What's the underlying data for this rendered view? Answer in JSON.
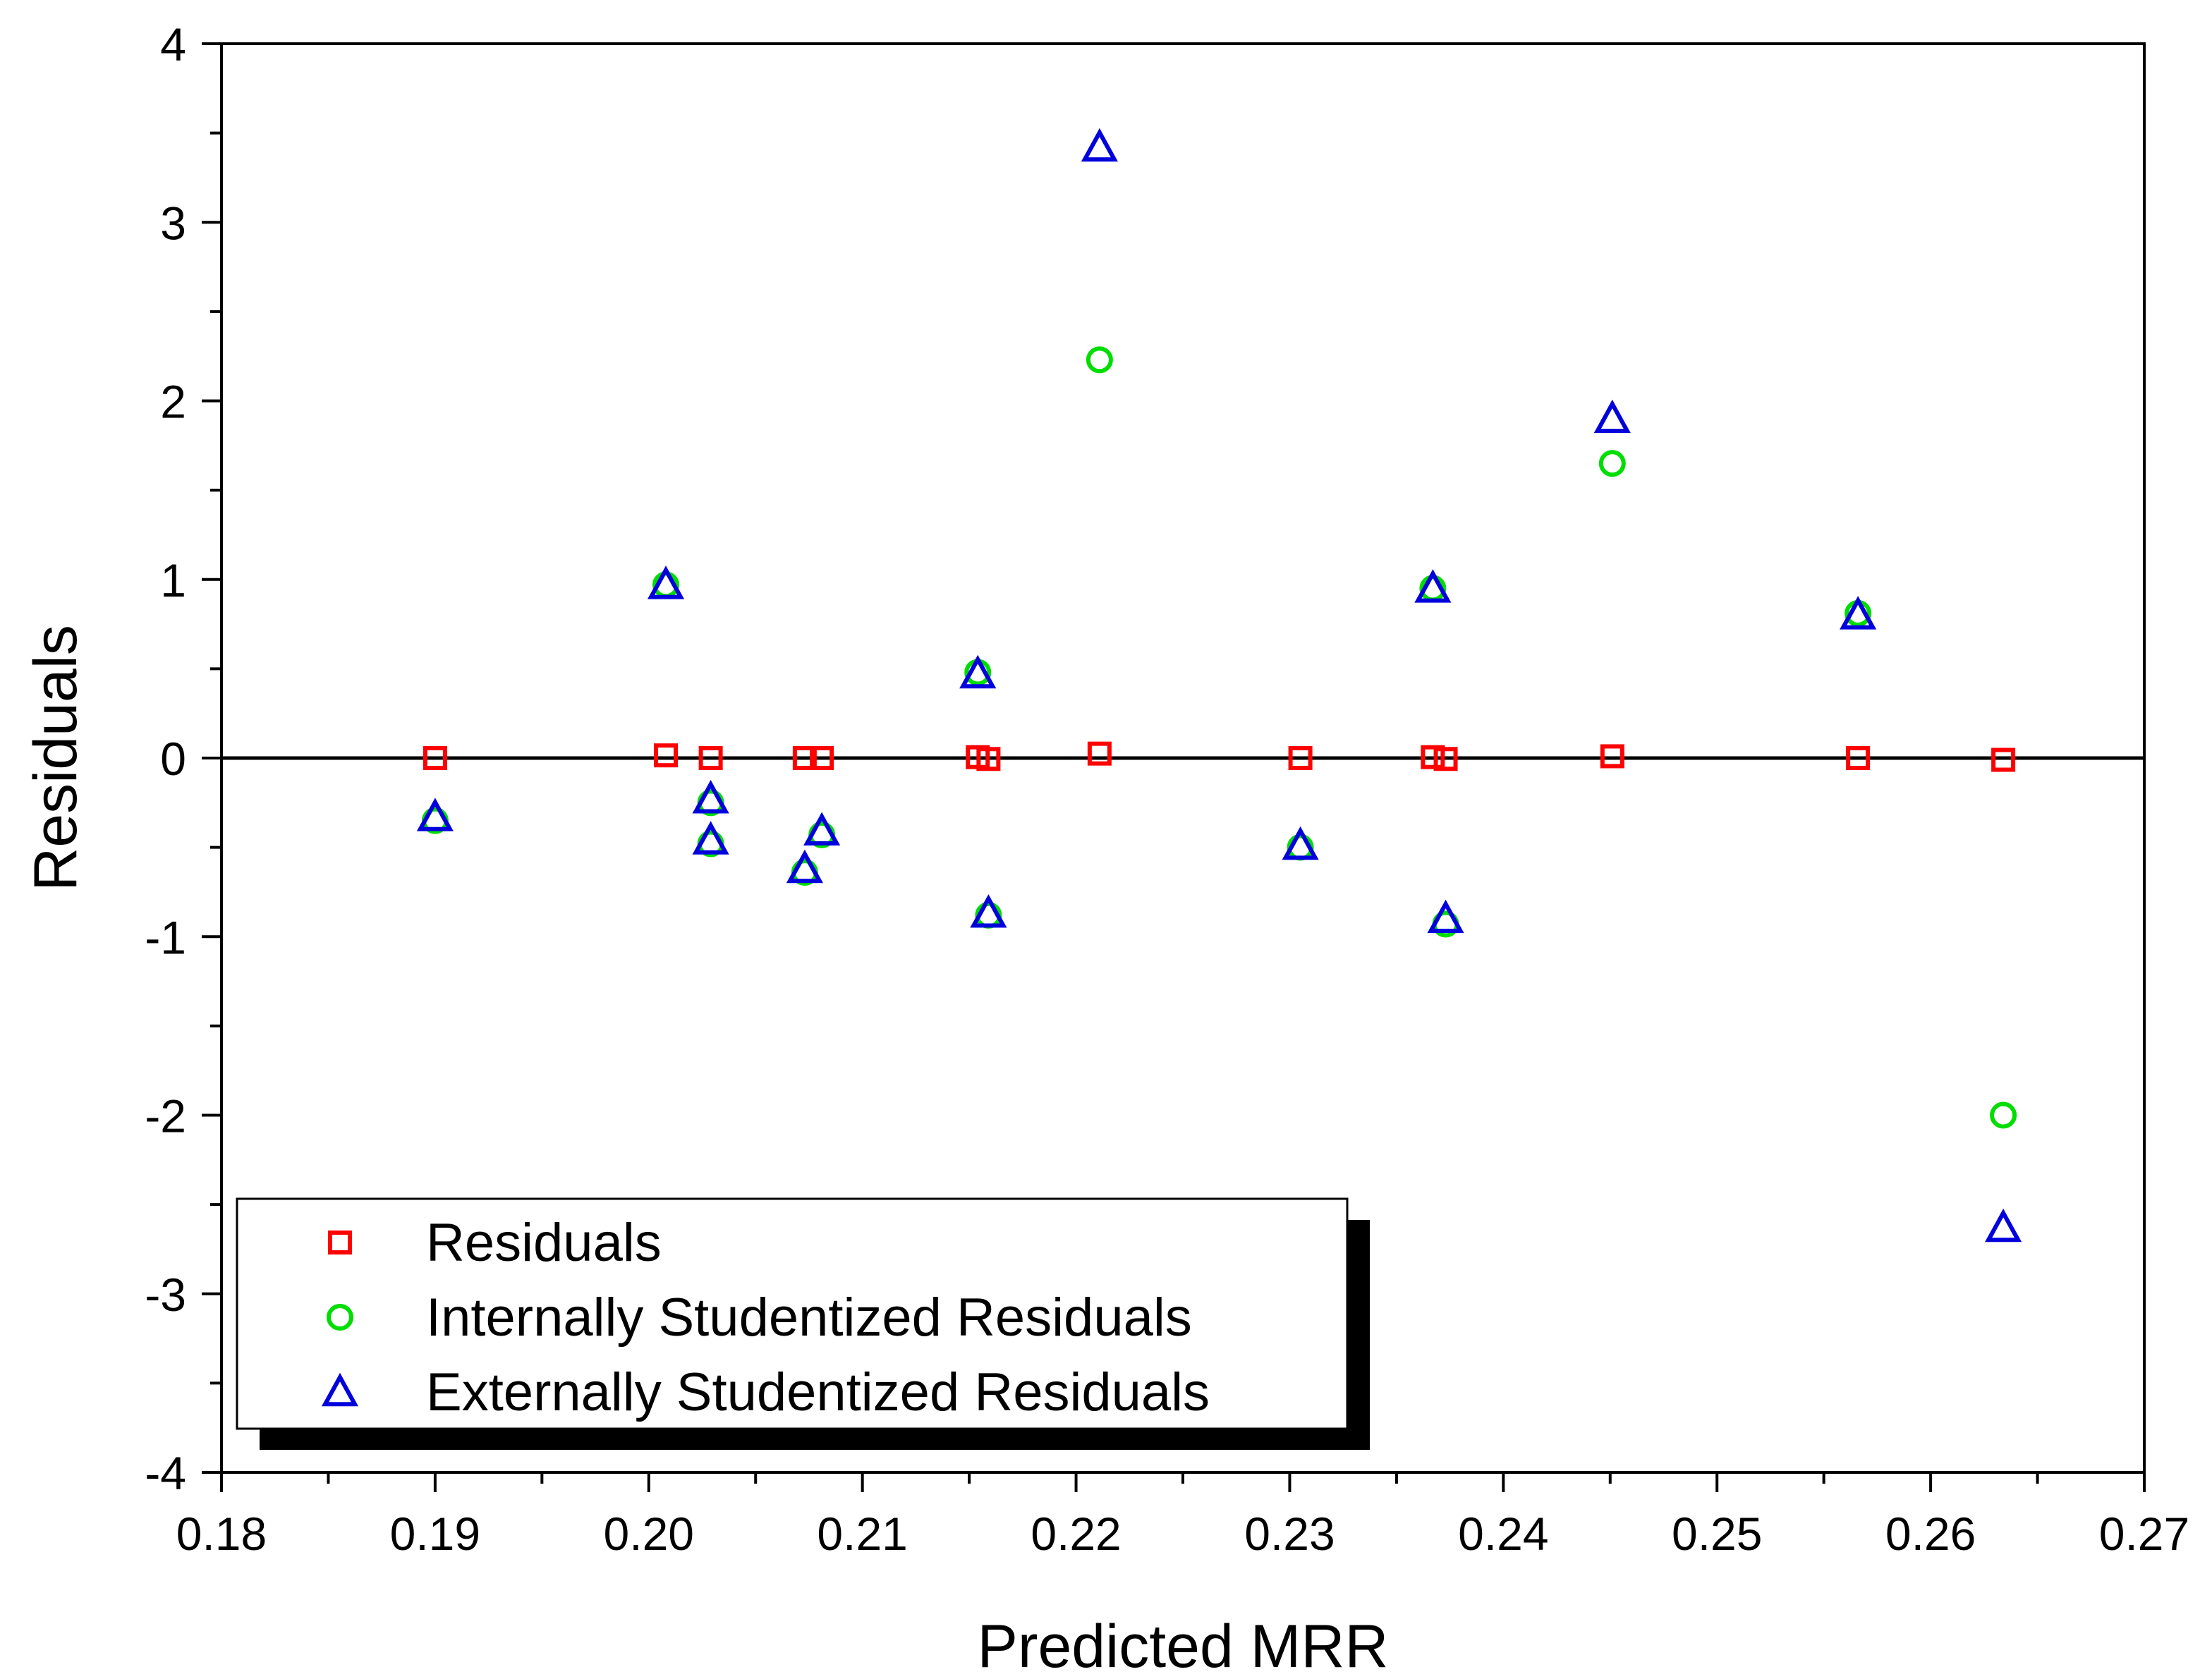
{
  "chart_data": {
    "type": "scatter",
    "title": "",
    "xlabel": "Predicted MRR",
    "ylabel": "Residuals",
    "xlim": [
      0.18,
      0.27
    ],
    "ylim": [
      -4,
      4
    ],
    "x_ticks": [
      "0.18",
      "0.19",
      "0.20",
      "0.21",
      "0.22",
      "0.23",
      "0.24",
      "0.25",
      "0.26",
      "0.27"
    ],
    "x_tick_values": [
      0.18,
      0.19,
      0.2,
      0.21,
      0.22,
      0.23,
      0.24,
      0.25,
      0.26,
      0.27
    ],
    "y_ticks": [
      "-4",
      "-3",
      "-2",
      "-1",
      "0",
      "1",
      "2",
      "3",
      "4"
    ],
    "y_tick_values": [
      -4,
      -3,
      -2,
      -1,
      0,
      1,
      2,
      3,
      4
    ],
    "zero_line": 0,
    "grid": false,
    "legend_position": "bottom-left",
    "series": [
      {
        "name": "Residuals",
        "marker": "square",
        "color": "#ff0000",
        "x": [
          0.19,
          0.2008,
          0.2029,
          0.2073,
          0.2081,
          0.2154,
          0.2159,
          0.2211,
          0.2305,
          0.2367,
          0.2373,
          0.2451,
          0.2566,
          0.2634
        ],
        "y": [
          0.0,
          0.015,
          0.0,
          0.0,
          0.0,
          0.005,
          -0.005,
          0.025,
          0.0,
          0.005,
          -0.005,
          0.01,
          0.0,
          -0.01
        ]
      },
      {
        "name": "Internally Studentized Residuals",
        "marker": "circle",
        "color": "#00dd00",
        "x": [
          0.19,
          0.2008,
          0.2029,
          0.2029,
          0.2073,
          0.2081,
          0.2154,
          0.2159,
          0.2211,
          0.2305,
          0.2367,
          0.2373,
          0.2451,
          0.2566,
          0.2634
        ],
        "y": [
          -0.35,
          0.97,
          -0.25,
          -0.48,
          -0.64,
          -0.43,
          0.48,
          -0.88,
          2.23,
          -0.5,
          0.95,
          -0.93,
          1.65,
          0.81,
          -2.0
        ]
      },
      {
        "name": "Externally Studentized Residuals",
        "marker": "triangle",
        "color": "#0000dd",
        "x": [
          0.19,
          0.2008,
          0.2029,
          0.2029,
          0.2073,
          0.2081,
          0.2154,
          0.2159,
          0.2211,
          0.2305,
          0.2367,
          0.2373,
          0.2451,
          0.2566,
          0.2634
        ],
        "y": [
          -0.33,
          0.97,
          -0.23,
          -0.46,
          -0.62,
          -0.41,
          0.47,
          -0.87,
          3.42,
          -0.49,
          0.95,
          -0.9,
          1.9,
          0.8,
          -2.63
        ]
      }
    ]
  }
}
